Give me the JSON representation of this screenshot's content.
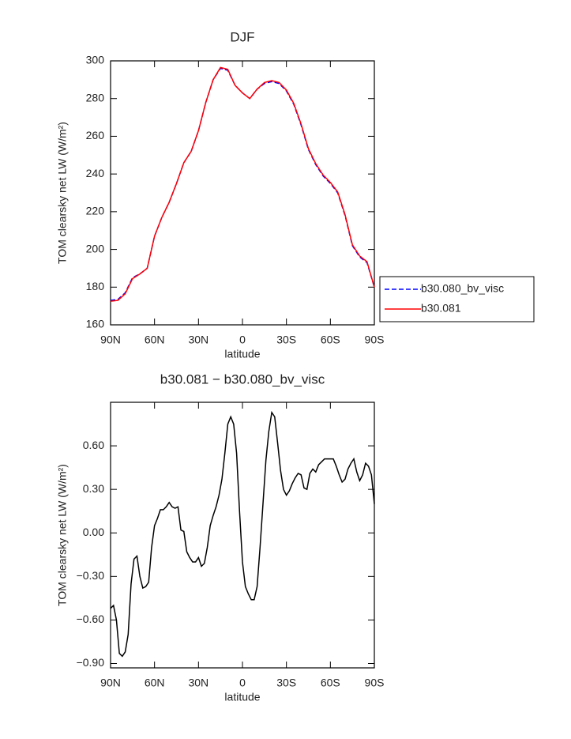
{
  "chart_data": [
    {
      "type": "line",
      "title": "DJF",
      "xlabel": "latitude",
      "ylabel": "TOM clearsky net LW (W/m²)",
      "x": [
        90,
        85,
        80,
        75,
        70,
        65,
        60,
        55,
        50,
        45,
        40,
        35,
        30,
        25,
        20,
        15,
        10,
        5,
        0,
        -5,
        -10,
        -15,
        -20,
        -25,
        -30,
        -35,
        -40,
        -45,
        -50,
        -55,
        -60,
        -65,
        -70,
        -75,
        -80,
        -85,
        -90
      ],
      "series": [
        {
          "name": "b30.080_bv_visc",
          "color": "#0000ff",
          "dash": true,
          "values": [
            173,
            173.5,
            177,
            185,
            187,
            190,
            207,
            217,
            225,
            235,
            246,
            252,
            263,
            278,
            290,
            296,
            295,
            287,
            283,
            280,
            285,
            288,
            289,
            288,
            284,
            277,
            266,
            253,
            245,
            239,
            235,
            230,
            218,
            202,
            196,
            193,
            180
          ]
        },
        {
          "name": "b30.081",
          "color": "#ff0000",
          "dash": false,
          "values": [
            172.5,
            173,
            176.5,
            184.5,
            187,
            190,
            207,
            217,
            225,
            235,
            246,
            252,
            263,
            278,
            290,
            296.5,
            295.5,
            287,
            283,
            280,
            285,
            288.5,
            289.5,
            288.5,
            284.5,
            277.5,
            266.5,
            253.5,
            245.5,
            239.5,
            235.5,
            230.5,
            218.5,
            202.5,
            196.5,
            193.5,
            180
          ]
        }
      ],
      "xlim": [
        90,
        -90
      ],
      "ylim": [
        160,
        300
      ],
      "xticks": [
        {
          "value": 90,
          "label": "90N"
        },
        {
          "value": 60,
          "label": "60N"
        },
        {
          "value": 30,
          "label": "30N"
        },
        0,
        {
          "value": -30,
          "label": "30S"
        },
        {
          "value": -60,
          "label": "60S"
        },
        {
          "value": -90,
          "label": "90S"
        }
      ],
      "yticks": [
        160,
        180,
        200,
        220,
        240,
        260,
        280,
        300
      ],
      "legend": "right"
    },
    {
      "type": "line",
      "title": "b30.081 − b30.080_bv_visc",
      "xlabel": "latitude",
      "ylabel": "TOM clearsky net LW (W/m²)",
      "x": [
        90,
        88,
        86,
        84,
        82,
        80,
        78,
        76,
        74,
        72,
        70,
        68,
        66,
        64,
        62,
        60,
        58,
        56,
        54,
        52,
        50,
        48,
        46,
        44,
        42,
        40,
        38,
        36,
        34,
        32,
        30,
        28,
        26,
        24,
        22,
        20,
        18,
        16,
        14,
        12,
        10,
        8,
        6,
        4,
        2,
        0,
        -2,
        -4,
        -6,
        -8,
        -10,
        -12,
        -14,
        -16,
        -18,
        -20,
        -22,
        -24,
        -26,
        -28,
        -30,
        -32,
        -34,
        -36,
        -38,
        -40,
        -42,
        -44,
        -46,
        -48,
        -50,
        -52,
        -54,
        -56,
        -58,
        -60,
        -62,
        -64,
        -66,
        -68,
        -70,
        -72,
        -74,
        -76,
        -78,
        -80,
        -82,
        -84,
        -86,
        -88,
        -90
      ],
      "values": [
        -0.52,
        -0.5,
        -0.6,
        -0.83,
        -0.85,
        -0.82,
        -0.7,
        -0.35,
        -0.18,
        -0.16,
        -0.3,
        -0.38,
        -0.37,
        -0.34,
        -0.1,
        0.05,
        0.1,
        0.16,
        0.16,
        0.18,
        0.21,
        0.18,
        0.17,
        0.18,
        0.02,
        0.01,
        -0.13,
        -0.17,
        -0.2,
        -0.2,
        -0.17,
        -0.23,
        -0.21,
        -0.1,
        0.05,
        0.12,
        0.18,
        0.26,
        0.37,
        0.55,
        0.75,
        0.8,
        0.75,
        0.55,
        0.15,
        -0.2,
        -0.37,
        -0.42,
        -0.46,
        -0.46,
        -0.37,
        -0.1,
        0.2,
        0.5,
        0.7,
        0.83,
        0.8,
        0.62,
        0.43,
        0.3,
        0.26,
        0.29,
        0.34,
        0.38,
        0.41,
        0.4,
        0.31,
        0.3,
        0.41,
        0.44,
        0.42,
        0.47,
        0.49,
        0.51,
        0.51,
        0.51,
        0.51,
        0.46,
        0.4,
        0.35,
        0.37,
        0.44,
        0.48,
        0.51,
        0.42,
        0.36,
        0.4,
        0.48,
        0.46,
        0.4,
        0.2
      ],
      "color": "#000000",
      "xlim": [
        90,
        -90
      ],
      "ylim": [
        -0.93,
        0.9
      ],
      "xticks": [
        {
          "value": 90,
          "label": "90N"
        },
        {
          "value": 60,
          "label": "60N"
        },
        {
          "value": 30,
          "label": "30N"
        },
        0,
        {
          "value": -30,
          "label": "30S"
        },
        {
          "value": -60,
          "label": "60S"
        },
        {
          "value": -90,
          "label": "90S"
        }
      ],
      "yticks": [
        {
          "value": -0.9,
          "label": "−0.90"
        },
        {
          "value": -0.6,
          "label": "−0.60"
        },
        {
          "value": -0.3,
          "label": "−0.30"
        },
        {
          "value": 0,
          "label": "0.00"
        },
        {
          "value": 0.3,
          "label": "0.30"
        },
        {
          "value": 0.6,
          "label": "0.60"
        }
      ]
    }
  ]
}
